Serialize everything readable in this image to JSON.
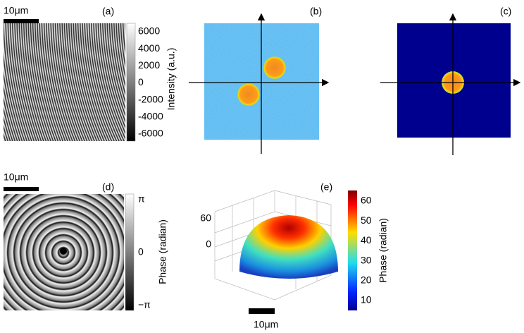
{
  "panels": [
    {
      "label": "(a)"
    },
    {
      "label": "(b)"
    },
    {
      "label": "(c)"
    },
    {
      "label": "(d)"
    },
    {
      "label": "(e)"
    }
  ],
  "scale_bars": [
    "10μm",
    "10μm",
    "10μm"
  ],
  "colorbar_a": {
    "label": "Intensity (a.u.)",
    "ticks": [
      "6000",
      "4000",
      "2000",
      "0",
      "-2000",
      "-4000",
      "-6000"
    ]
  },
  "colorbar_d": {
    "label": "Phase (radian)",
    "ticks": [
      "π",
      "0",
      "−π"
    ]
  },
  "colorbar_e": {
    "label": "Phase (radian)",
    "ticks": [
      "60",
      "50",
      "40",
      "30",
      "20",
      "10"
    ]
  },
  "surface_e": {
    "ticks": [
      "60",
      "0"
    ]
  }
}
